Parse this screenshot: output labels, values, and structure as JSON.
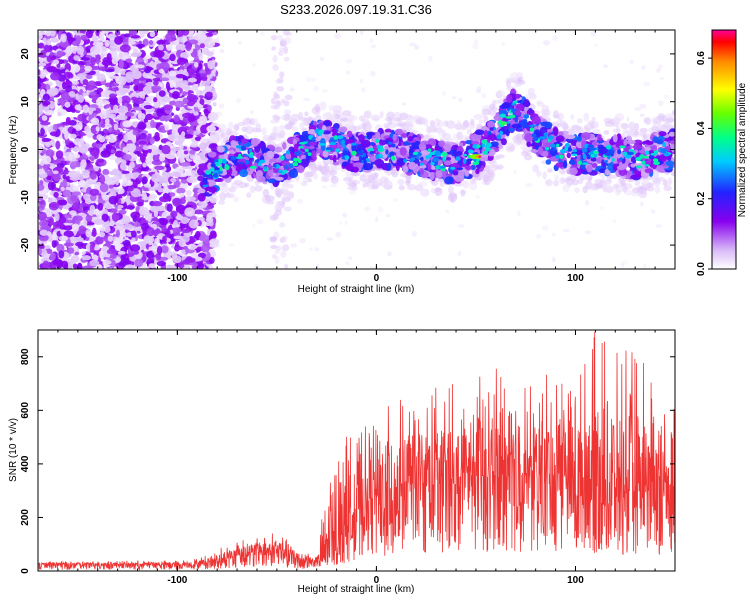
{
  "title": "S233.2026.097.19.31.C36",
  "chart_data": [
    {
      "type": "heatmap",
      "xlabel": "Height of straight line (km)",
      "ylabel": "Frequency (Hz)",
      "xlim": [
        -170,
        150
      ],
      "ylim": [
        -25,
        25
      ],
      "x_ticks": [
        -100,
        0,
        100
      ],
      "y_ticks": [
        -20,
        -10,
        0,
        10,
        20
      ],
      "grid": false,
      "description_series": [
        {
          "name": "noise_region",
          "x_range": [
            -170,
            -85
          ],
          "freq_range": [
            -25,
            25
          ],
          "level": 0.05
        },
        {
          "name": "signal_ridge",
          "x": [
            -88,
            -80,
            -70,
            -60,
            -50,
            -40,
            -30,
            -20,
            -10,
            0,
            10,
            20,
            30,
            40,
            50,
            60,
            65,
            70,
            80,
            90,
            100,
            110,
            120,
            130,
            140,
            148
          ],
          "freq": [
            -7,
            -4,
            -1,
            -2,
            -4,
            -1,
            2,
            1,
            -1,
            0,
            0,
            -1,
            -2,
            -3,
            -1,
            3,
            6,
            9,
            3,
            0,
            -1,
            -1,
            -1,
            -2,
            -1,
            0
          ],
          "peak_level": 0.68
        }
      ],
      "colorbar": {
        "label": "Normalized spectral amplitude",
        "range": [
          0.0,
          0.68
        ],
        "ticks": [
          0.0,
          0.2,
          0.4,
          0.6
        ],
        "tick_labels": [
          "0.0",
          "0.2",
          "0.4",
          "0.6"
        ]
      }
    },
    {
      "type": "line",
      "xlabel": "Height of straight line (km)",
      "ylabel": "SNR (10 * v/v)",
      "xlim": [
        -170,
        150
      ],
      "ylim": [
        0,
        900
      ],
      "x_ticks": [
        -100,
        0,
        100
      ],
      "y_ticks": [
        0,
        200,
        400,
        600,
        800
      ],
      "color": "#ee3333",
      "series": [
        {
          "name": "SNR envelope",
          "x": [
            -170,
            -100,
            -90,
            -80,
            -70,
            -60,
            -50,
            -40,
            -30,
            -20,
            -10,
            0,
            10,
            20,
            30,
            40,
            50,
            60,
            70,
            80,
            90,
            100,
            110,
            120,
            130,
            140,
            150
          ],
          "values": [
            25,
            25,
            25,
            40,
            60,
            70,
            80,
            45,
            30,
            100,
            220,
            260,
            300,
            320,
            330,
            340,
            340,
            350,
            350,
            340,
            330,
            330,
            310,
            300,
            300,
            300,
            300
          ],
          "max": [
            35,
            40,
            45,
            80,
            120,
            130,
            145,
            90,
            60,
            590,
            500,
            600,
            660,
            620,
            700,
            720,
            720,
            760,
            680,
            700,
            780,
            700,
            900,
            830,
            820,
            810,
            700
          ]
        }
      ]
    }
  ]
}
